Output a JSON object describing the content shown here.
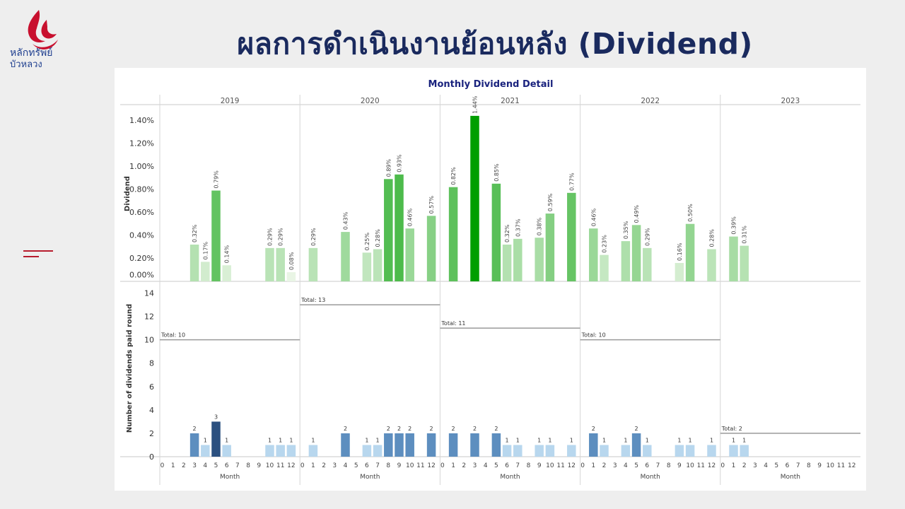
{
  "slide": {
    "title": "ผลการดำเนินงานย้อนหลัง (Dividend)",
    "logo_line1": "หลักทรัพย์",
    "logo_line2": "บัวหลวง"
  },
  "colors": {
    "title": "#1a2a5e",
    "brand_red": "#c8102e",
    "brand_blue": "#1f3f8f"
  },
  "chart_data": {
    "type": "bar",
    "title": "Monthly Dividend Detail",
    "years": [
      "2019",
      "2020",
      "2021",
      "2022",
      "2023"
    ],
    "x_ticks": [
      "0",
      "1",
      "2",
      "3",
      "4",
      "5",
      "6",
      "7",
      "8",
      "9",
      "10",
      "11",
      "12"
    ],
    "xlabel": "Month",
    "dividend_panel": {
      "ylabel": "Dividend",
      "ylim": [
        0,
        0.0155
      ],
      "yticks": [
        "0.00%",
        "0.20%",
        "0.40%",
        "0.60%",
        "0.80%",
        "1.00%",
        "1.20%",
        "1.40%"
      ],
      "series": [
        {
          "year": "2019",
          "points": [
            {
              "month": 3,
              "value": 0.0032,
              "label": "0.32%"
            },
            {
              "month": 4,
              "value": 0.0017,
              "label": "0.17%"
            },
            {
              "month": 5,
              "value": 0.0079,
              "label": "0.79%"
            },
            {
              "month": 6,
              "value": 0.0014,
              "label": "0.14%"
            },
            {
              "month": 10,
              "value": 0.0029,
              "label": "0.29%"
            },
            {
              "month": 11,
              "value": 0.0029,
              "label": "0.29%"
            },
            {
              "month": 12,
              "value": 0.0008,
              "label": "0.08%"
            }
          ]
        },
        {
          "year": "2020",
          "points": [
            {
              "month": 1,
              "value": 0.0029,
              "label": "0.29%"
            },
            {
              "month": 4,
              "value": 0.0043,
              "label": "0.43%"
            },
            {
              "month": 6,
              "value": 0.0025,
              "label": "0.25%"
            },
            {
              "month": 7,
              "value": 0.0028,
              "label": "0.28%"
            },
            {
              "month": 8,
              "value": 0.0089,
              "label": "0.89%"
            },
            {
              "month": 9,
              "value": 0.0093,
              "label": "0.93%"
            },
            {
              "month": 10,
              "value": 0.0046,
              "label": "0.46%"
            },
            {
              "month": 12,
              "value": 0.0057,
              "label": "0.57%"
            }
          ]
        },
        {
          "year": "2021",
          "points": [
            {
              "month": 1,
              "value": 0.0082,
              "label": "0.82%"
            },
            {
              "month": 3,
              "value": 0.0144,
              "label": "1.44%"
            },
            {
              "month": 5,
              "value": 0.0085,
              "label": "0.85%"
            },
            {
              "month": 6,
              "value": 0.0032,
              "label": "0.32%"
            },
            {
              "month": 7,
              "value": 0.0037,
              "label": "0.37%"
            },
            {
              "month": 9,
              "value": 0.0038,
              "label": "0.38%"
            },
            {
              "month": 10,
              "value": 0.0059,
              "label": "0.59%"
            },
            {
              "month": 12,
              "value": 0.0077,
              "label": "0.77%"
            }
          ]
        },
        {
          "year": "2022",
          "points": [
            {
              "month": 1,
              "value": 0.0046,
              "label": "0.46%"
            },
            {
              "month": 2,
              "value": 0.0023,
              "label": "0.23%"
            },
            {
              "month": 4,
              "value": 0.0035,
              "label": "0.35%"
            },
            {
              "month": 5,
              "value": 0.0049,
              "label": "0.49%"
            },
            {
              "month": 6,
              "value": 0.0029,
              "label": "0.29%"
            },
            {
              "month": 9,
              "value": 0.0016,
              "label": "0.16%"
            },
            {
              "month": 10,
              "value": 0.005,
              "label": "0.50%"
            },
            {
              "month": 12,
              "value": 0.0028,
              "label": "0.28%"
            }
          ]
        },
        {
          "year": "2023",
          "points": [
            {
              "month": 1,
              "value": 0.0039,
              "label": "0.39%"
            },
            {
              "month": 2,
              "value": 0.0031,
              "label": "0.31%"
            }
          ]
        }
      ]
    },
    "count_panel": {
      "ylabel": "Number of dividends paid round",
      "ylim": [
        0,
        15
      ],
      "yticks": [
        "0",
        "2",
        "4",
        "6",
        "8",
        "10",
        "12",
        "14"
      ],
      "totals": [
        {
          "year": "2019",
          "value": 10,
          "label": "Total: 10"
        },
        {
          "year": "2020",
          "value": 13,
          "label": "Total: 13"
        },
        {
          "year": "2021",
          "value": 11,
          "label": "Total: 11"
        },
        {
          "year": "2022",
          "value": 10,
          "label": "Total: 10"
        },
        {
          "year": "2023",
          "value": 2,
          "label": "Total: 2"
        }
      ],
      "series": [
        {
          "year": "2019",
          "points": [
            {
              "month": 3,
              "value": 2
            },
            {
              "month": 4,
              "value": 1
            },
            {
              "month": 5,
              "value": 3
            },
            {
              "month": 6,
              "value": 1
            },
            {
              "month": 10,
              "value": 1
            },
            {
              "month": 11,
              "value": 1
            },
            {
              "month": 12,
              "value": 1
            }
          ]
        },
        {
          "year": "2020",
          "points": [
            {
              "month": 1,
              "value": 1
            },
            {
              "month": 4,
              "value": 2
            },
            {
              "month": 6,
              "value": 1
            },
            {
              "month": 7,
              "value": 1
            },
            {
              "month": 8,
              "value": 2
            },
            {
              "month": 9,
              "value": 2
            },
            {
              "month": 10,
              "value": 2
            },
            {
              "month": 12,
              "value": 2
            }
          ]
        },
        {
          "year": "2021",
          "points": [
            {
              "month": 1,
              "value": 2
            },
            {
              "month": 3,
              "value": 2
            },
            {
              "month": 5,
              "value": 2
            },
            {
              "month": 6,
              "value": 1
            },
            {
              "month": 7,
              "value": 1
            },
            {
              "month": 9,
              "value": 1
            },
            {
              "month": 10,
              "value": 1
            },
            {
              "month": 12,
              "value": 1
            }
          ]
        },
        {
          "year": "2022",
          "points": [
            {
              "month": 1,
              "value": 2
            },
            {
              "month": 2,
              "value": 1
            },
            {
              "month": 4,
              "value": 1
            },
            {
              "month": 5,
              "value": 2
            },
            {
              "month": 6,
              "value": 1
            },
            {
              "month": 9,
              "value": 1
            },
            {
              "month": 10,
              "value": 1
            },
            {
              "month": 12,
              "value": 1
            }
          ]
        },
        {
          "year": "2023",
          "points": [
            {
              "month": 1,
              "value": 1
            },
            {
              "month": 2,
              "value": 1
            }
          ]
        }
      ]
    }
  }
}
